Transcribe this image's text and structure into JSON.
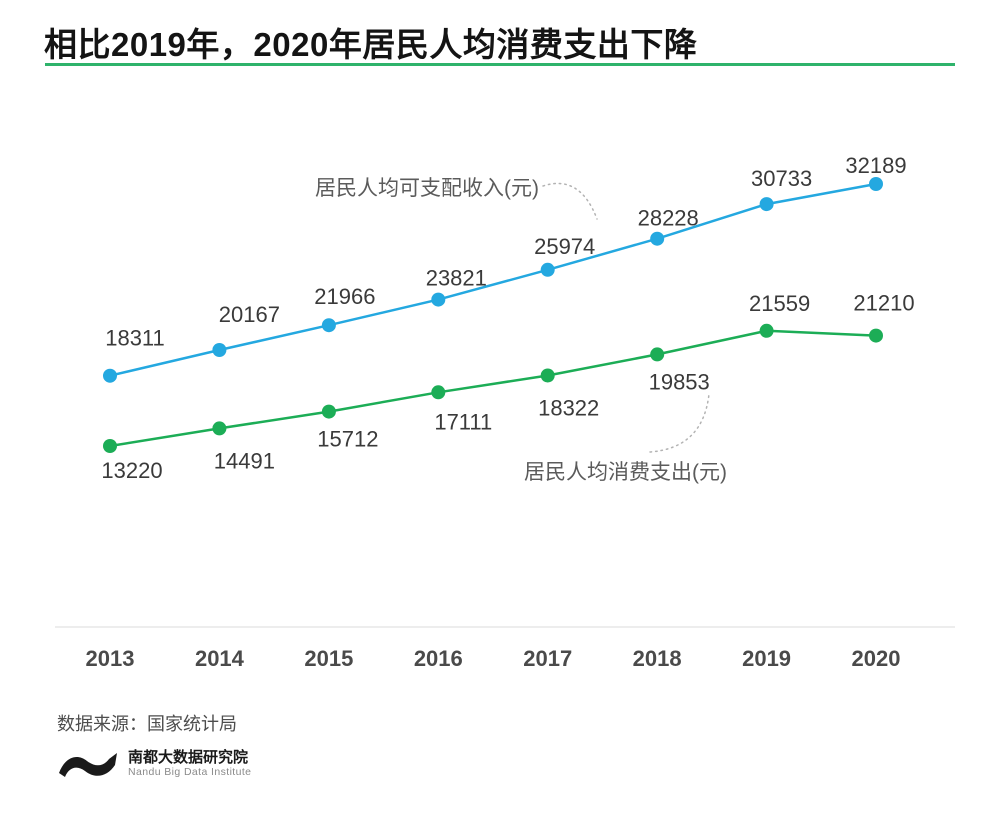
{
  "title": "相比2019年，2020年居民人均消费支出下降",
  "source": "数据来源：国家统计局",
  "logo": {
    "cn": "南都大数据研究院",
    "en": "Nandu Big Data Institute"
  },
  "colors": {
    "income": "#24A8E0",
    "expenditure": "#1CAD56",
    "title_underline": "#2FB36B",
    "value_label": "#3a3a3a",
    "year_label": "#4a4a4a",
    "axis_line": "#ededed",
    "annotation_arc": "#b3b3b3"
  },
  "chart_data": {
    "type": "line",
    "categories": [
      "2013",
      "2014",
      "2015",
      "2016",
      "2017",
      "2018",
      "2019",
      "2020"
    ],
    "series": [
      {
        "name": "居民人均可支配收入(元)",
        "color_key": "income",
        "values": [
          18311,
          20167,
          21966,
          23821,
          25974,
          28228,
          30733,
          32189
        ]
      },
      {
        "name": "居民人均消费支出(元)",
        "color_key": "expenditure",
        "values": [
          13220,
          14491,
          15712,
          17111,
          18322,
          19853,
          21559,
          21210
        ]
      }
    ],
    "title": "相比2019年，2020年居民人均消费支出下降",
    "xlabel": "",
    "ylabel": "",
    "ylim": [
      13220,
      32189
    ],
    "grid": false,
    "legend_position": "inline-annotations",
    "annotations": [
      {
        "text": "居民人均可支配收入(元)",
        "series_index": 0
      },
      {
        "text": "居民人均消费支出(元)",
        "series_index": 1
      }
    ]
  }
}
